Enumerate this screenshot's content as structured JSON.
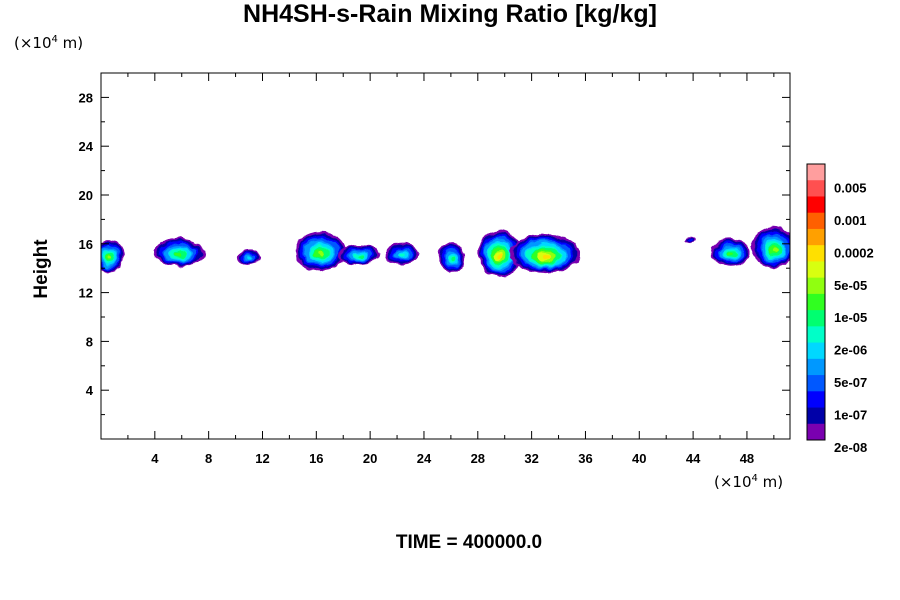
{
  "title": "NH4SH-s-Rain Mixing Ratio [kg/kg]",
  "y_unit_prefix": "(×10",
  "y_unit_exp": "4",
  "y_unit_suffix": " m)",
  "x_unit_prefix": "(×10",
  "x_unit_exp": "4",
  "x_unit_suffix": " m)",
  "ylabel": "Height",
  "time_label": "TIME = 400000.0",
  "chart_data": {
    "type": "heatmap",
    "title": "NH4SH-s-Rain Mixing Ratio [kg/kg]",
    "xlabel": "",
    "ylabel": "Height",
    "x_unit": "×10^4 m",
    "y_unit": "×10^4 m",
    "xlim": [
      0,
      51.2
    ],
    "ylim": [
      0,
      30
    ],
    "x_ticks": [
      4,
      8,
      12,
      16,
      20,
      24,
      28,
      32,
      36,
      40,
      44,
      48
    ],
    "y_ticks": [
      4,
      8,
      12,
      16,
      20,
      24,
      28
    ],
    "colorbar": {
      "labels": [
        "0.005",
        "0.001",
        "0.0002",
        "5e-05",
        "1e-05",
        "2e-06",
        "5e-07",
        "1e-07",
        "2e-08"
      ],
      "colors": [
        "#ff9e9e",
        "#ff5050",
        "#ff0000",
        "#ff6000",
        "#ffa000",
        "#ffe000",
        "#d8ff10",
        "#90ff10",
        "#30ff20",
        "#00ff70",
        "#00ffc8",
        "#00d8ff",
        "#0098ff",
        "#0058ff",
        "#0000ff",
        "#0000a8",
        "#7a00b0"
      ]
    },
    "clouds": [
      {
        "x": 0.6,
        "y": 15.0,
        "w": 2.2,
        "h": 2.6,
        "level": 9
      },
      {
        "x": 5.8,
        "y": 15.3,
        "w": 3.8,
        "h": 2.2,
        "level": 8
      },
      {
        "x": 11.0,
        "y": 14.9,
        "w": 1.8,
        "h": 1.2,
        "level": 5
      },
      {
        "x": 16.3,
        "y": 15.4,
        "w": 3.8,
        "h": 3.2,
        "level": 9
      },
      {
        "x": 19.2,
        "y": 15.1,
        "w": 3.0,
        "h": 1.6,
        "level": 7
      },
      {
        "x": 22.4,
        "y": 15.2,
        "w": 2.6,
        "h": 1.8,
        "level": 6
      },
      {
        "x": 26.1,
        "y": 14.9,
        "w": 2.0,
        "h": 2.4,
        "level": 7
      },
      {
        "x": 29.6,
        "y": 15.2,
        "w": 3.2,
        "h": 3.8,
        "level": 11
      },
      {
        "x": 33.0,
        "y": 15.2,
        "w": 5.2,
        "h": 3.2,
        "level": 11
      },
      {
        "x": 43.8,
        "y": 16.3,
        "w": 0.8,
        "h": 0.5,
        "level": 2
      },
      {
        "x": 46.8,
        "y": 15.3,
        "w": 3.0,
        "h": 2.2,
        "level": 8
      },
      {
        "x": 50.0,
        "y": 15.7,
        "w": 3.2,
        "h": 3.4,
        "level": 9
      }
    ]
  }
}
